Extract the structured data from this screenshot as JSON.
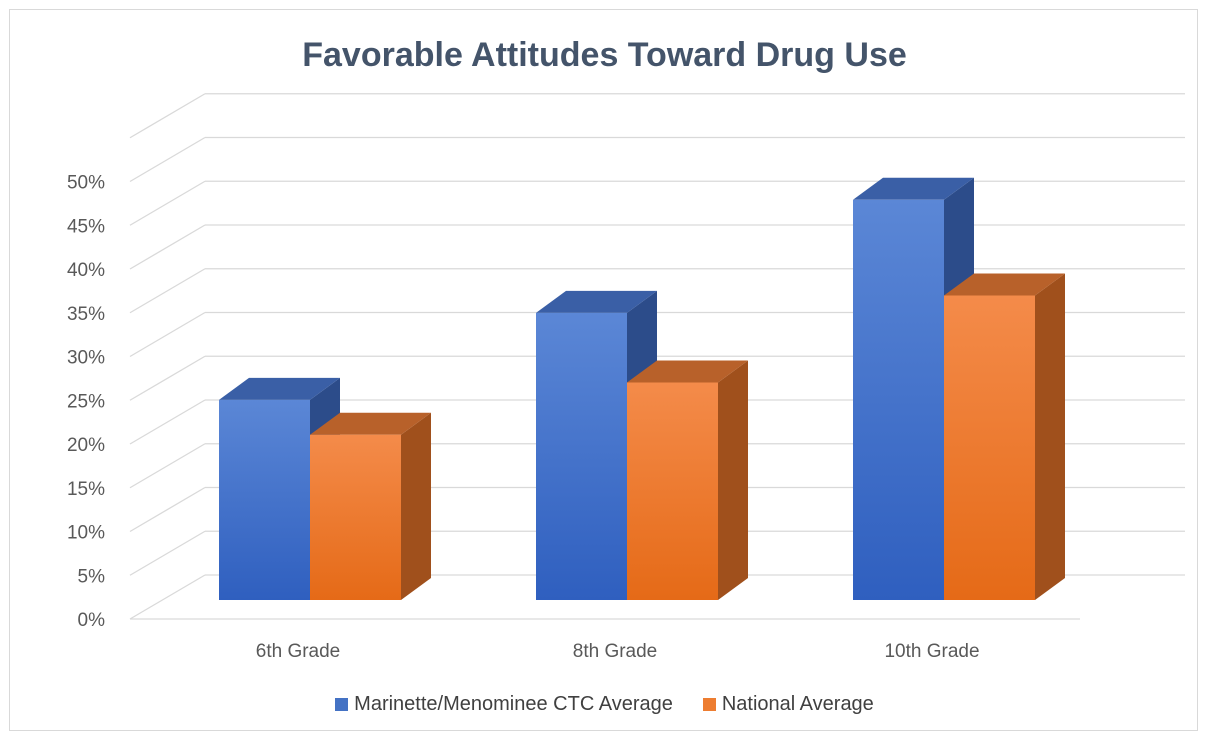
{
  "chart_data": {
    "type": "bar",
    "title": "Favorable Attitudes Toward Drug Use",
    "categories": [
      "6th Grade",
      "8th Grade",
      "10th Grade"
    ],
    "series": [
      {
        "name": "Marinette/Menominee CTC Average",
        "values": [
          23,
          33,
          46
        ],
        "color": "#4472c4"
      },
      {
        "name": "National Average",
        "values": [
          19,
          25,
          35
        ],
        "color": "#ed7d31"
      }
    ],
    "y_ticks": [
      "0%",
      "5%",
      "10%",
      "15%",
      "20%",
      "25%",
      "30%",
      "35%",
      "40%",
      "45%",
      "50%"
    ],
    "ylim": [
      0,
      50
    ],
    "grid": true,
    "legend_position": "bottom",
    "style": "3d-clustered-column"
  }
}
